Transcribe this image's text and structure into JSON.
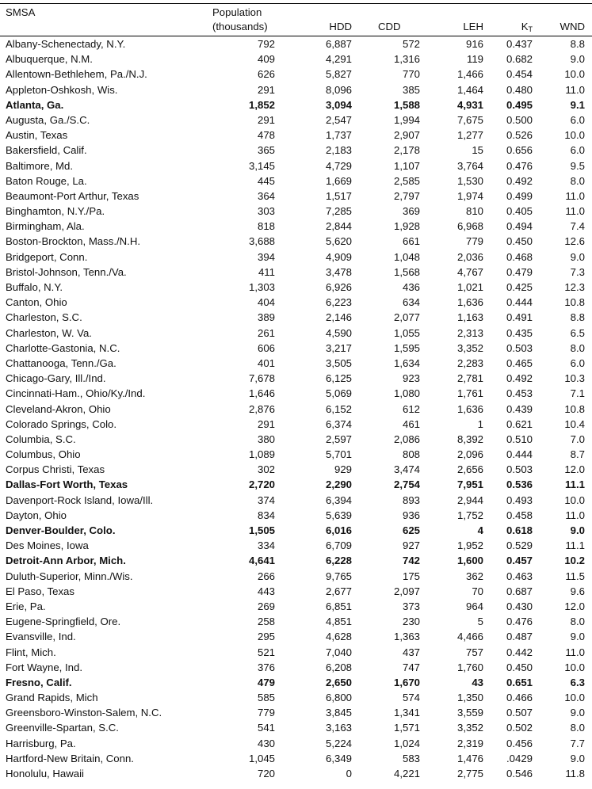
{
  "headers": {
    "smsa": "SMSA",
    "population_line1": "Population",
    "population_line2": "(thousands)",
    "hdd": "HDD",
    "cdd": "CDD",
    "leh": "LEH",
    "kt_main": "K",
    "kt_sub": "T",
    "wnd": "WND"
  },
  "rows": [
    {
      "smsa": "Albany-Schenectady, N.Y.",
      "pop": "792",
      "hdd": "6,887",
      "cdd": "572",
      "leh": "916",
      "kt": "0.437",
      "wnd": "8.8",
      "bold": false
    },
    {
      "smsa": "Albuquerque, N.M.",
      "pop": "409",
      "hdd": "4,291",
      "cdd": "1,316",
      "leh": "119",
      "kt": "0.682",
      "wnd": "9.0",
      "bold": false
    },
    {
      "smsa": "Allentown-Bethlehem, Pa./N.J.",
      "pop": "626",
      "hdd": "5,827",
      "cdd": "770",
      "leh": "1,466",
      "kt": "0.454",
      "wnd": "10.0",
      "bold": false
    },
    {
      "smsa": "Appleton-Oshkosh, Wis.",
      "pop": "291",
      "hdd": "8,096",
      "cdd": "385",
      "leh": "1,464",
      "kt": "0.480",
      "wnd": "11.0",
      "bold": false
    },
    {
      "smsa": "Atlanta, Ga.",
      "pop": "1,852",
      "hdd": "3,094",
      "cdd": "1,588",
      "leh": "4,931",
      "kt": "0.495",
      "wnd": "9.1",
      "bold": true
    },
    {
      "smsa": "Augusta, Ga./S.C.",
      "pop": "291",
      "hdd": "2,547",
      "cdd": "1,994",
      "leh": "7,675",
      "kt": "0.500",
      "wnd": "6.0",
      "bold": false
    },
    {
      "smsa": "Austin, Texas",
      "pop": "478",
      "hdd": "1,737",
      "cdd": "2,907",
      "leh": "1,277",
      "kt": "0.526",
      "wnd": "10.0",
      "bold": false
    },
    {
      "smsa": "Bakersfield, Calif.",
      "pop": "365",
      "hdd": "2,183",
      "cdd": "2,178",
      "leh": "15",
      "kt": "0.656",
      "wnd": "6.0",
      "bold": false
    },
    {
      "smsa": "Baltimore, Md.",
      "pop": "3,145",
      "hdd": "4,729",
      "cdd": "1,107",
      "leh": "3,764",
      "kt": "0.476",
      "wnd": "9.5",
      "bold": false
    },
    {
      "smsa": "Baton Rouge, La.",
      "pop": "445",
      "hdd": "1,669",
      "cdd": "2,585",
      "leh": "1,530",
      "kt": "0.492",
      "wnd": "8.0",
      "bold": false
    },
    {
      "smsa": "Beaumont-Port Arthur, Texas",
      "pop": "364",
      "hdd": "1,517",
      "cdd": "2,797",
      "leh": "1,974",
      "kt": "0.499",
      "wnd": "11.0",
      "bold": false
    },
    {
      "smsa": "Binghamton, N.Y./Pa.",
      "pop": "303",
      "hdd": "7,285",
      "cdd": "369",
      "leh": "810",
      "kt": "0.405",
      "wnd": "11.0",
      "bold": false
    },
    {
      "smsa": "Birmingham, Ala.",
      "pop": "818",
      "hdd": "2,844",
      "cdd": "1,928",
      "leh": "6,968",
      "kt": "0.494",
      "wnd": "7.4",
      "bold": false
    },
    {
      "smsa": "Boston-Brockton, Mass./N.H.",
      "pop": "3,688",
      "hdd": "5,620",
      "cdd": "661",
      "leh": "779",
      "kt": "0.450",
      "wnd": "12.6",
      "bold": false
    },
    {
      "smsa": "Bridgeport, Conn.",
      "pop": "394",
      "hdd": "4,909",
      "cdd": "1,048",
      "leh": "2,036",
      "kt": "0.468",
      "wnd": "9.0",
      "bold": false
    },
    {
      "smsa": "Bristol-Johnson, Tenn./Va.",
      "pop": "411",
      "hdd": "3,478",
      "cdd": "1,568",
      "leh": "4,767",
      "kt": "0.479",
      "wnd": "7.3",
      "bold": false
    },
    {
      "smsa": "Buffalo, N.Y.",
      "pop": "1,303",
      "hdd": "6,926",
      "cdd": "436",
      "leh": "1,021",
      "kt": "0.425",
      "wnd": "12.3",
      "bold": false
    },
    {
      "smsa": "Canton, Ohio",
      "pop": "404",
      "hdd": "6,223",
      "cdd": "634",
      "leh": "1,636",
      "kt": "0.444",
      "wnd": "10.8",
      "bold": false
    },
    {
      "smsa": "Charleston, S.C.",
      "pop": "389",
      "hdd": "2,146",
      "cdd": "2,077",
      "leh": "1,163",
      "kt": "0.491",
      "wnd": "8.8",
      "bold": false
    },
    {
      "smsa": "Charleston, W. Va.",
      "pop": "261",
      "hdd": "4,590",
      "cdd": "1,055",
      "leh": "2,313",
      "kt": "0.435",
      "wnd": "6.5",
      "bold": false
    },
    {
      "smsa": "Charlotte-Gastonia, N.C.",
      "pop": "606",
      "hdd": "3,217",
      "cdd": "1,595",
      "leh": "3,352",
      "kt": "0.503",
      "wnd": "8.0",
      "bold": false
    },
    {
      "smsa": "Chattanooga, Tenn./Ga.",
      "pop": "401",
      "hdd": "3,505",
      "cdd": "1,634",
      "leh": "2,283",
      "kt": "0.465",
      "wnd": "6.0",
      "bold": false
    },
    {
      "smsa": "Chicago-Gary, Ill./Ind.",
      "pop": "7,678",
      "hdd": "6,125",
      "cdd": "923",
      "leh": "2,781",
      "kt": "0.492",
      "wnd": "10.3",
      "bold": false
    },
    {
      "smsa": "Cincinnati-Ham., Ohio/Ky./Ind.",
      "pop": "1,646",
      "hdd": "5,069",
      "cdd": "1,080",
      "leh": "1,761",
      "kt": "0.453",
      "wnd": "7.1",
      "bold": false
    },
    {
      "smsa": "Cleveland-Akron, Ohio",
      "pop": "2,876",
      "hdd": "6,152",
      "cdd": "612",
      "leh": "1,636",
      "kt": "0.439",
      "wnd": "10.8",
      "bold": false
    },
    {
      "smsa": "Colorado Springs, Colo.",
      "pop": "291",
      "hdd": "6,374",
      "cdd": "461",
      "leh": "1",
      "kt": "0.621",
      "wnd": "10.4",
      "bold": false
    },
    {
      "smsa": "Columbia, S.C.",
      "pop": "380",
      "hdd": "2,597",
      "cdd": "2,086",
      "leh": "8,392",
      "kt": "0.510",
      "wnd": "7.0",
      "bold": false
    },
    {
      "smsa": "Columbus, Ohio",
      "pop": "1,089",
      "hdd": "5,701",
      "cdd": "808",
      "leh": "2,096",
      "kt": "0.444",
      "wnd": "8.7",
      "bold": false
    },
    {
      "smsa": "Corpus Christi, Texas",
      "pop": "302",
      "hdd": "929",
      "cdd": "3,474",
      "leh": "2,656",
      "kt": "0.503",
      "wnd": "12.0",
      "bold": false
    },
    {
      "smsa": "Dallas-Fort Worth, Texas",
      "pop": "2,720",
      "hdd": "2,290",
      "cdd": "2,754",
      "leh": "7,951",
      "kt": "0.536",
      "wnd": "11.1",
      "bold": true
    },
    {
      "smsa": "Davenport-Rock Island, Iowa/Ill.",
      "pop": "374",
      "hdd": "6,394",
      "cdd": "893",
      "leh": "2,944",
      "kt": "0.493",
      "wnd": "10.0",
      "bold": false
    },
    {
      "smsa": "Dayton, Ohio",
      "pop": "834",
      "hdd": "5,639",
      "cdd": "936",
      "leh": "1,752",
      "kt": "0.458",
      "wnd": "11.0",
      "bold": false
    },
    {
      "smsa": "Denver-Boulder, Colo.",
      "pop": "1,505",
      "hdd": "6,016",
      "cdd": "625",
      "leh": "4",
      "kt": "0.618",
      "wnd": "9.0",
      "bold": true
    },
    {
      "smsa": "Des Moines, Iowa",
      "pop": "334",
      "hdd": "6,709",
      "cdd": "927",
      "leh": "1,952",
      "kt": "0.529",
      "wnd": "11.1",
      "bold": false
    },
    {
      "smsa": "Detroit-Ann Arbor, Mich.",
      "pop": "4,641",
      "hdd": "6,228",
      "cdd": "742",
      "leh": "1,600",
      "kt": "0.457",
      "wnd": "10.2",
      "bold": true
    },
    {
      "smsa": "Duluth-Superior, Minn./Wis.",
      "pop": "266",
      "hdd": "9,765",
      "cdd": "175",
      "leh": "362",
      "kt": "0.463",
      "wnd": "11.5",
      "bold": false
    },
    {
      "smsa": "El Paso, Texas",
      "pop": "443",
      "hdd": "2,677",
      "cdd": "2,097",
      "leh": "70",
      "kt": "0.687",
      "wnd": "9.6",
      "bold": false
    },
    {
      "smsa": "Erie, Pa.",
      "pop": "269",
      "hdd": "6,851",
      "cdd": "373",
      "leh": "964",
      "kt": "0.430",
      "wnd": "12.0",
      "bold": false
    },
    {
      "smsa": "Eugene-Springfield, Ore.",
      "pop": "258",
      "hdd": "4,851",
      "cdd": "230",
      "leh": "5",
      "kt": "0.476",
      "wnd": "8.0",
      "bold": false
    },
    {
      "smsa": "Evansville, Ind.",
      "pop": "295",
      "hdd": "4,628",
      "cdd": "1,363",
      "leh": "4,466",
      "kt": "0.487",
      "wnd": "9.0",
      "bold": false
    },
    {
      "smsa": "Flint, Mich.",
      "pop": "521",
      "hdd": "7,040",
      "cdd": "437",
      "leh": "757",
      "kt": "0.442",
      "wnd": "11.0",
      "bold": false
    },
    {
      "smsa": "Fort Wayne, Ind.",
      "pop": "376",
      "hdd": "6,208",
      "cdd": "747",
      "leh": "1,760",
      "kt": "0.450",
      "wnd": "10.0",
      "bold": false
    },
    {
      "smsa": "Fresno, Calif.",
      "pop": "479",
      "hdd": "2,650",
      "cdd": "1,670",
      "leh": "43",
      "kt": "0.651",
      "wnd": "6.3",
      "bold": true
    },
    {
      "smsa": "Grand Rapids, Mich",
      "pop": "585",
      "hdd": "6,800",
      "cdd": "574",
      "leh": "1,350",
      "kt": "0.466",
      "wnd": "10.0",
      "bold": false
    },
    {
      "smsa": "Greensboro-Winston-Salem, N.C.",
      "pop": "779",
      "hdd": "3,845",
      "cdd": "1,341",
      "leh": "3,559",
      "kt": "0.507",
      "wnd": "9.0",
      "bold": false
    },
    {
      "smsa": "Greenville-Spartan, S.C.",
      "pop": "541",
      "hdd": "3,163",
      "cdd": "1,571",
      "leh": "3,352",
      "kt": "0.502",
      "wnd": "8.0",
      "bold": false
    },
    {
      "smsa": "Harrisburg, Pa.",
      "pop": "430",
      "hdd": "5,224",
      "cdd": "1,024",
      "leh": "2,319",
      "kt": "0.456",
      "wnd": "7.7",
      "bold": false
    },
    {
      "smsa": "Hartford-New Britain, Conn.",
      "pop": "1,045",
      "hdd": "6,349",
      "cdd": "583",
      "leh": "1,476",
      "kt": ".0429",
      "wnd": "9.0",
      "bold": false
    },
    {
      "smsa": "Honolulu, Hawaii",
      "pop": "720",
      "hdd": "0",
      "cdd": "4,221",
      "leh": "2,775",
      "kt": "0.546",
      "wnd": "11.8",
      "bold": false
    }
  ]
}
